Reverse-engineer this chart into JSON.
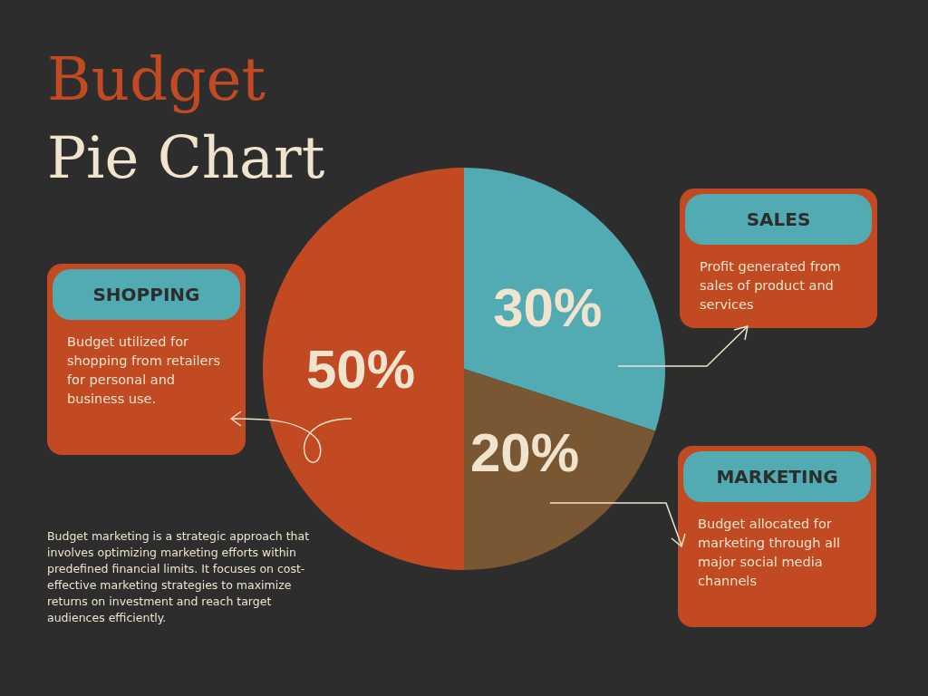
{
  "chart_data": {
    "type": "pie",
    "title": "Budget",
    "subtitle": "Pie Chart",
    "categories": [
      "SALES",
      "MARKETING",
      "SHOPPING"
    ],
    "values": [
      30,
      20,
      50
    ],
    "colors": [
      "#52aab3",
      "#7a5733",
      "#c24a22"
    ],
    "value_labels": [
      "30%",
      "20%",
      "50%"
    ],
    "annotations": [
      "Profit generated from sales of product and services",
      "Budget allocated for marketing through all major social media channels",
      "Budget utilized for shopping from retailers for personal and business use.",
      "Budget marketing is a strategic approach that involves optimizing marketing efforts within predefined financial limits. It focuses on cost-effective marketing strategies to maximize returns on investment and reach target audiences efficiently."
    ],
    "legend": false
  }
}
